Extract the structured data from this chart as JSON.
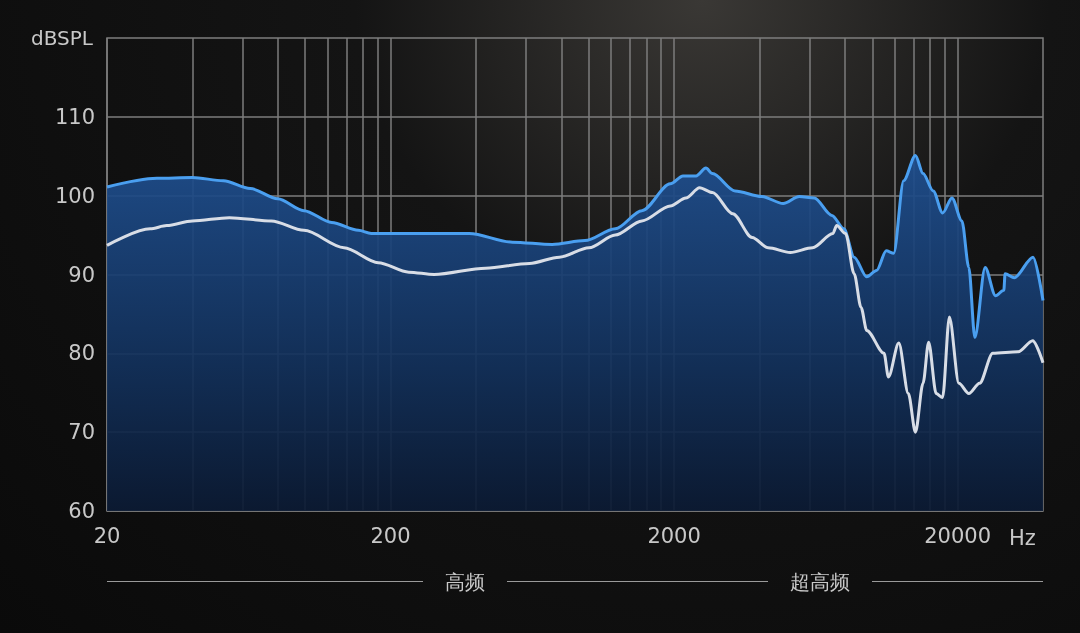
{
  "chart_data": {
    "type": "area",
    "ylabel": "dBSPL",
    "xlabel": "Hz",
    "log": "x",
    "grid": true,
    "marker": "none",
    "line_style": "solid",
    "xlim": [
      20,
      40000
    ],
    "ylim": [
      60,
      120
    ],
    "xticks": [
      20,
      {
        "value": 40,
        "label": null
      },
      {
        "value": 60,
        "label": null
      },
      {
        "value": 80,
        "label": null
      },
      {
        "value": 100,
        "label": null
      },
      {
        "value": 120,
        "label": null
      },
      {
        "value": 140,
        "label": null
      },
      {
        "value": 160,
        "label": null
      },
      {
        "value": 180,
        "label": null
      },
      200,
      {
        "value": 400,
        "label": null
      },
      {
        "value": 600,
        "label": null
      },
      {
        "value": 800,
        "label": null
      },
      {
        "value": 1000,
        "label": null
      },
      {
        "value": 1200,
        "label": null
      },
      {
        "value": 1400,
        "label": null
      },
      {
        "value": 1600,
        "label": null
      },
      {
        "value": 1800,
        "label": null
      },
      2000,
      {
        "value": 4000,
        "label": null
      },
      {
        "value": 6000,
        "label": null
      },
      {
        "value": 8000,
        "label": null
      },
      {
        "value": 10000,
        "label": null
      },
      {
        "value": 12000,
        "label": null
      },
      {
        "value": 14000,
        "label": null
      },
      {
        "value": 16000,
        "label": null
      },
      {
        "value": 18000,
        "label": null
      },
      20000
    ],
    "yticks": [
      60,
      70,
      80,
      90,
      100,
      110
    ],
    "annotations": [
      "高频",
      "超高频"
    ],
    "series": [
      {
        "color": "#4a9ff0",
        "x": [
          20,
          30,
          40,
          51.5,
          64,
          80,
          99,
          124,
          154,
          171,
          256,
          379,
          538,
          743,
          970,
          1240,
          1540,
          1940,
          2150,
          2390,
          2590,
          2730,
          3280,
          4070,
          4850,
          5530,
          6240,
          7200,
          7940,
          8630,
          9560,
          10350,
          11200,
          11900,
          12900,
          14200,
          15100,
          16400,
          17700,
          19100,
          20700,
          21900,
          23000,
          25000,
          27200,
          29100,
          29400,
          31700,
          36900,
          40000
        ],
        "values": [
          101.1,
          102.2,
          102.3,
          101.9,
          100.9,
          99.6,
          98.1,
          96.6,
          95.6,
          95.2,
          95.2,
          95.2,
          94.1,
          93.8,
          94.3,
          95.8,
          98.1,
          101.5,
          102.5,
          102.5,
          103.5,
          102.8,
          100.6,
          99.9,
          99.0,
          99.9,
          99.7,
          97.5,
          95.8,
          92.2,
          89.7,
          90.5,
          93.0,
          92.7,
          101.9,
          105.1,
          102.8,
          100.6,
          97.8,
          99.7,
          96.8,
          90.9,
          82.0,
          90.9,
          87.3,
          88.0,
          90.1,
          89.6,
          92.2,
          86.7
        ]
      },
      {
        "type": "line",
        "color": "#d8dde6",
        "x": [
          20,
          28.4,
          32.5,
          40,
          54,
          76,
          99,
          137,
          181,
          232,
          285,
          433,
          618,
          788,
          1002,
          1240,
          1540,
          1940,
          2200,
          2460,
          2730,
          3220,
          3770,
          4290,
          5140,
          6160,
          7260,
          7490,
          8050,
          8630,
          9130,
          9560,
          11000,
          11400,
          12400,
          13400,
          14200,
          15100,
          15800,
          16800,
          17700,
          18700,
          20200,
          21900,
          23900,
          26600,
          32700,
          36800,
          40000
        ],
        "values": [
          93.7,
          95.8,
          96.2,
          96.8,
          97.2,
          96.8,
          95.6,
          93.4,
          91.5,
          90.3,
          90.0,
          90.8,
          91.4,
          92.2,
          93.4,
          95.0,
          96.8,
          98.7,
          99.7,
          101.0,
          100.4,
          97.7,
          94.7,
          93.4,
          92.8,
          93.4,
          95.2,
          96.2,
          95.2,
          90.1,
          85.8,
          82.9,
          80.0,
          77.0,
          81.3,
          74.9,
          70.0,
          76.2,
          81.4,
          74.9,
          74.4,
          84.6,
          76.2,
          74.9,
          76.2,
          80.0,
          80.2,
          81.6,
          78.8
        ]
      }
    ]
  }
}
